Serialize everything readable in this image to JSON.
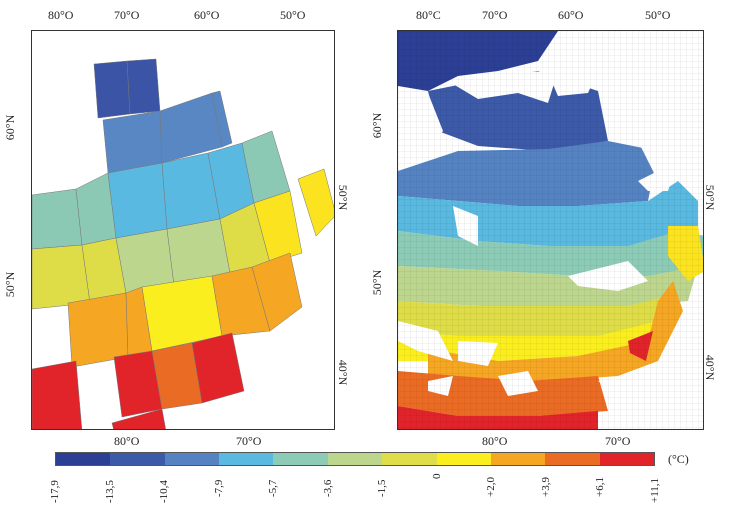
{
  "left_map": {
    "top_lon_labels": [
      "80°O",
      "70°O",
      "60°O",
      "50°O"
    ],
    "bottom_lon_labels": [
      "80°O",
      "70°O"
    ],
    "left_lat_labels": [
      "60°N",
      "50°N"
    ],
    "right_lat_labels": [
      "50°N",
      "40°N"
    ]
  },
  "right_map": {
    "top_lon_labels": [
      "80°C",
      "70°O",
      "60°O",
      "50°O"
    ],
    "bottom_lon_labels": [
      "80°O",
      "70°O"
    ],
    "left_lat_labels": [
      "60°N",
      "50°N"
    ],
    "right_lat_labels": [
      "50°N",
      "40°N"
    ]
  },
  "legend": {
    "unit": "(°C)",
    "labels": [
      "-17,9",
      "-13,5",
      "-10,4",
      "-7,9",
      "-5,7",
      "-3,6",
      "-1,5",
      "0",
      "+2,0",
      "+3,9",
      "+6,1",
      "+11,1"
    ],
    "colors": [
      "#2b3f95",
      "#3d5aa8",
      "#5583c2",
      "#5ab9e0",
      "#8ccbb6",
      "#bcd68e",
      "#dfdd4a",
      "#fbee1f",
      "#f5a623",
      "#ea6b23",
      "#e0242a"
    ]
  }
}
